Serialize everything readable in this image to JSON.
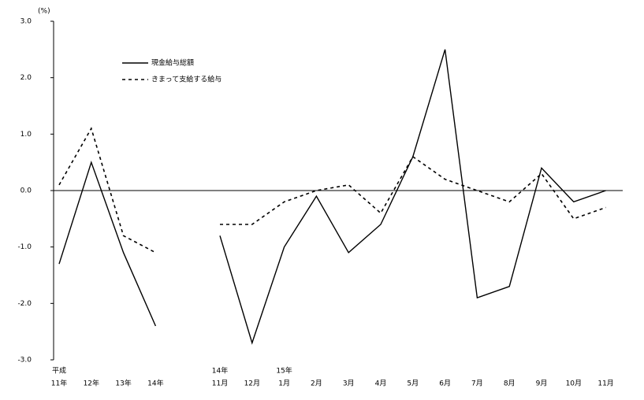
{
  "chart_data": {
    "type": "line",
    "unit_label": "(%)",
    "categories": [
      "11年",
      "12年",
      "13年",
      "14年",
      null,
      "11月",
      "12月",
      "1月",
      "2月",
      "3月",
      "4月",
      "5月",
      "6月",
      "7月",
      "8月",
      "9月",
      "10月",
      "11月"
    ],
    "category_prefixes": [
      "平成",
      null,
      null,
      null,
      null,
      "14年",
      null,
      "15年",
      null,
      null,
      null,
      null,
      null,
      null,
      null,
      null,
      null,
      null
    ],
    "series": [
      {
        "name": "現金給与総額",
        "color": "#000000",
        "dash": "solid",
        "values": [
          -1.3,
          0.5,
          -1.1,
          -2.4,
          null,
          -0.8,
          -2.7,
          -1.0,
          -0.1,
          -1.1,
          -0.6,
          0.6,
          2.5,
          -1.9,
          -1.7,
          0.4,
          -0.2,
          0.0
        ]
      },
      {
        "name": "きまって支給する給与",
        "color": "#000000",
        "dash": "dashed",
        "values": [
          0.1,
          1.1,
          -0.8,
          -1.1,
          null,
          -0.6,
          -0.6,
          -0.2,
          0.0,
          0.1,
          -0.4,
          0.6,
          0.2,
          0.0,
          -0.2,
          0.3,
          -0.5,
          -0.3
        ]
      }
    ],
    "ylim": [
      -3,
      3
    ],
    "yticks": [
      {
        "value": -3,
        "label": "-3.0"
      },
      {
        "value": -2,
        "label": "-2.0"
      },
      {
        "value": -1,
        "label": "-1.0"
      },
      {
        "value": 0,
        "label": "0.0"
      },
      {
        "value": 1,
        "label": "1.0"
      },
      {
        "value": 2,
        "label": "2.0"
      },
      {
        "value": 3,
        "label": "3.0"
      }
    ],
    "legend": "top-left"
  }
}
